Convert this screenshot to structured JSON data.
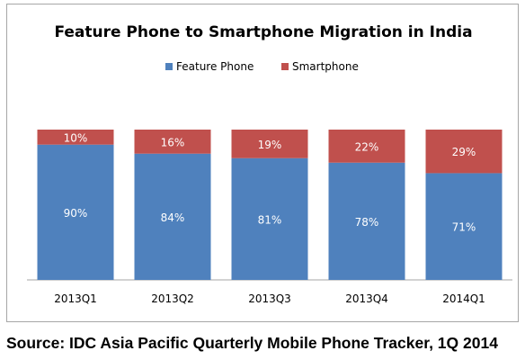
{
  "chart_data": {
    "type": "bar",
    "stacked": true,
    "percent_stacked": true,
    "title": "Feature Phone to Smartphone Migration  in India",
    "categories": [
      "2013Q1",
      "2013Q2",
      "2013Q3",
      "2013Q4",
      "2014Q1"
    ],
    "series": [
      {
        "name": "Feature Phone",
        "values": [
          90,
          84,
          81,
          78,
          71
        ],
        "labels": [
          "90%",
          "84%",
          "81%",
          "78%",
          "71%"
        ],
        "color": "#4f81bd"
      },
      {
        "name": "Smartphone",
        "values": [
          10,
          16,
          19,
          22,
          29
        ],
        "labels": [
          "10%",
          "16%",
          "19%",
          "22%",
          "29%"
        ],
        "color": "#c0504d"
      }
    ],
    "ylim": [
      0,
      100
    ],
    "legend_position": "top",
    "grid": false,
    "data_label_color": "#ffffff"
  },
  "source": "Source: IDC Asia Pacific Quarterly Mobile Phone Tracker, 1Q 2014"
}
